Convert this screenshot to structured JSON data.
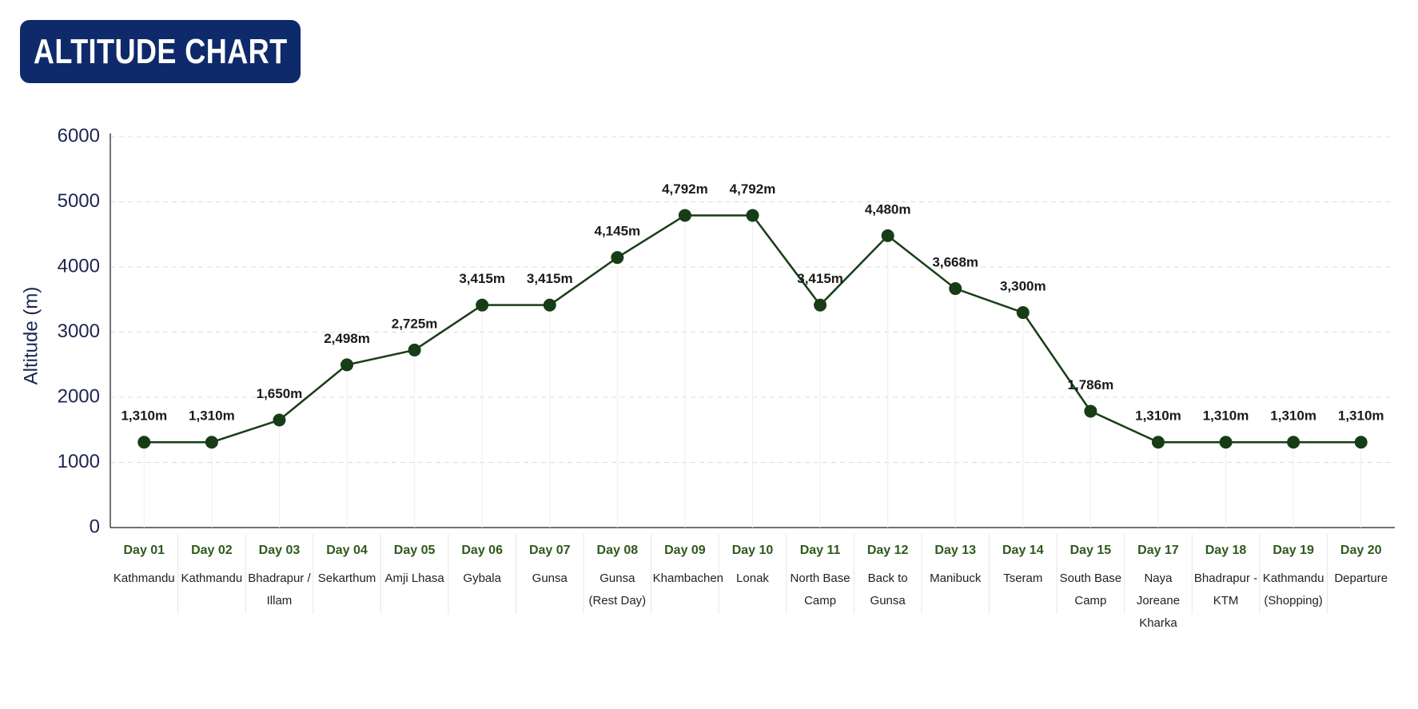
{
  "chart_data": {
    "type": "line",
    "title": "ALTITUDE CHART",
    "y_label": "Altitude (m)",
    "categories": [
      "Day 01",
      "Day 02",
      "Day 03",
      "Day 04",
      "Day 05",
      "Day 06",
      "Day 07",
      "Day 08",
      "Day 09",
      "Day 10",
      "Day 11",
      "Day 12",
      "Day 13",
      "Day 14",
      "Day 15",
      "Day 17",
      "Day 18",
      "Day 19",
      "Day 20"
    ],
    "locations": [
      "Kathmandu",
      "Kathmandu",
      "Bhadrapur / Illam",
      "Sekarthum",
      "Amji Lhasa",
      "Gybala",
      "Gunsa",
      "Gunsa (Rest Day)",
      "Khambachen",
      "Lonak",
      "North Base Camp",
      "Back to Gunsa",
      "Manibuck",
      "Tseram",
      "South Base Camp",
      "Naya Joreane Kharka",
      "Bhadrapur - KTM",
      "Kathmandu (Shopping)",
      "Departure"
    ],
    "values": [
      1310,
      1310,
      1650,
      2498,
      2725,
      3415,
      3415,
      4145,
      4792,
      4792,
      3415,
      4480,
      3668,
      3300,
      1786,
      1310,
      1310,
      1310,
      1310
    ],
    "value_labels": [
      "1,310m",
      "1,310m",
      "1,650m",
      "2,498m",
      "2,725m",
      "3,415m",
      "3,415m",
      "4,145m",
      "4,792m",
      "4,792m",
      "3,415m",
      "4,480m",
      "3,668m",
      "3,300m",
      "1,786m",
      "1,310m",
      "1,310m",
      "1,310m",
      "1,310m"
    ],
    "color": "#173d17",
    "ylim": [
      0,
      6000
    ],
    "yticks": [
      0,
      1000,
      2000,
      3000,
      4000,
      5000,
      6000
    ],
    "grid": true
  }
}
